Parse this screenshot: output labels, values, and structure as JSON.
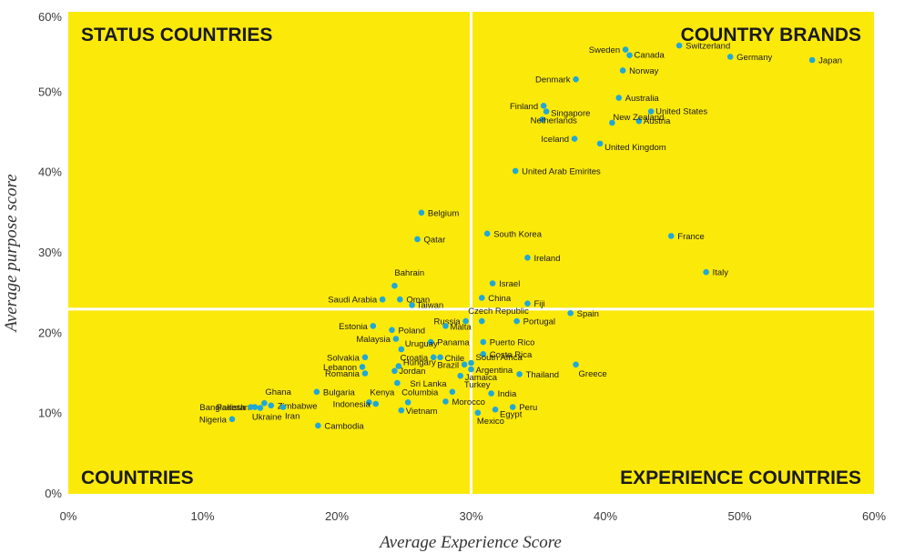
{
  "chart_data": {
    "type": "scatter",
    "xlabel": "Average Experience Score",
    "ylabel": "Average purpose score",
    "xlim": [
      0,
      60
    ],
    "ylim": [
      0,
      60
    ],
    "x_ticks": [
      "0%",
      "10%",
      "20%",
      "30%",
      "40%",
      "50%",
      "60%"
    ],
    "y_ticks": [
      "0%",
      "10%",
      "20%",
      "30%",
      "40%",
      "50%",
      "60%"
    ],
    "divider_x": 30,
    "divider_y": 23,
    "background_color": "#fbe90a",
    "point_color": "#1fa8d8",
    "quadrant_labels": {
      "top_left": "STATUS COUNTRIES",
      "top_right": "COUNTRY BRANDS",
      "bottom_left": "COUNTRIES",
      "bottom_right": "EXPERIENCE COUNTRIES"
    },
    "points": [
      {
        "name": "Switzerland",
        "x": 45.5,
        "y": 55.8
      },
      {
        "name": "Sweden",
        "x": 41.5,
        "y": 55.3
      },
      {
        "name": "Canada",
        "x": 41.8,
        "y": 54.6
      },
      {
        "name": "Germany",
        "x": 49.3,
        "y": 54.4
      },
      {
        "name": "Japan",
        "x": 55.4,
        "y": 54.0
      },
      {
        "name": "Norway",
        "x": 41.3,
        "y": 52.7
      },
      {
        "name": "Denmark",
        "x": 37.8,
        "y": 51.6
      },
      {
        "name": "Australia",
        "x": 41.0,
        "y": 49.3
      },
      {
        "name": "Finland",
        "x": 35.4,
        "y": 48.3
      },
      {
        "name": "Singapore",
        "x": 35.6,
        "y": 47.6
      },
      {
        "name": "United States",
        "x": 43.4,
        "y": 47.6
      },
      {
        "name": "Netherlands",
        "x": 35.3,
        "y": 46.6
      },
      {
        "name": "Austria",
        "x": 42.5,
        "y": 46.4
      },
      {
        "name": "New Zealand",
        "x": 40.5,
        "y": 46.2
      },
      {
        "name": "Iceland",
        "x": 37.7,
        "y": 44.2
      },
      {
        "name": "United Kingdom",
        "x": 39.6,
        "y": 43.6
      },
      {
        "name": "United Arab Emirites",
        "x": 33.3,
        "y": 40.2
      },
      {
        "name": "Belgium",
        "x": 26.3,
        "y": 35.0
      },
      {
        "name": "South Korea",
        "x": 31.2,
        "y": 32.4
      },
      {
        "name": "France",
        "x": 44.9,
        "y": 32.1
      },
      {
        "name": "Qatar",
        "x": 26.0,
        "y": 31.7
      },
      {
        "name": "Ireland",
        "x": 34.2,
        "y": 29.4
      },
      {
        "name": "Italy",
        "x": 47.5,
        "y": 27.6
      },
      {
        "name": "Israel",
        "x": 31.6,
        "y": 26.2
      },
      {
        "name": "Bahrain",
        "x": 24.3,
        "y": 25.9
      },
      {
        "name": "Saudi Arabia",
        "x": 23.4,
        "y": 24.2
      },
      {
        "name": "Oman",
        "x": 24.7,
        "y": 24.2
      },
      {
        "name": "China",
        "x": 30.8,
        "y": 24.4
      },
      {
        "name": "Taiwan",
        "x": 25.6,
        "y": 23.5
      },
      {
        "name": "Fiji",
        "x": 34.2,
        "y": 23.7
      },
      {
        "name": "Spain",
        "x": 37.4,
        "y": 22.5
      },
      {
        "name": "Russia",
        "x": 29.6,
        "y": 21.5
      },
      {
        "name": "Czech Republic",
        "x": 30.8,
        "y": 21.5
      },
      {
        "name": "Portugal",
        "x": 33.4,
        "y": 21.5
      },
      {
        "name": "Estonia",
        "x": 22.7,
        "y": 20.9
      },
      {
        "name": "Poland",
        "x": 24.1,
        "y": 20.4
      },
      {
        "name": "Malta",
        "x": 28.1,
        "y": 20.9
      },
      {
        "name": "Malaysia",
        "x": 24.4,
        "y": 19.3
      },
      {
        "name": "Panama",
        "x": 27.0,
        "y": 18.9
      },
      {
        "name": "Puerto Rico",
        "x": 30.9,
        "y": 18.9
      },
      {
        "name": "Uruguay",
        "x": 24.8,
        "y": 18.0
      },
      {
        "name": "Costa Rica",
        "x": 30.9,
        "y": 17.4
      },
      {
        "name": "Solvakia",
        "x": 22.1,
        "y": 17.0
      },
      {
        "name": "Croatia",
        "x": 27.2,
        "y": 17.0
      },
      {
        "name": "Chile",
        "x": 27.7,
        "y": 17.0
      },
      {
        "name": "South Africa",
        "x": 30.0,
        "y": 16.3
      },
      {
        "name": "Greece",
        "x": 37.8,
        "y": 16.1
      },
      {
        "name": "Lebanon",
        "x": 21.9,
        "y": 15.8
      },
      {
        "name": "Hungary",
        "x": 24.6,
        "y": 15.9
      },
      {
        "name": "Brazil",
        "x": 29.5,
        "y": 16.1
      },
      {
        "name": "Argentina",
        "x": 30.0,
        "y": 15.5
      },
      {
        "name": "Romania",
        "x": 22.1,
        "y": 15.0
      },
      {
        "name": "Jordan",
        "x": 24.3,
        "y": 15.3
      },
      {
        "name": "Jamaica",
        "x": 29.2,
        "y": 14.7
      },
      {
        "name": "Thailand",
        "x": 33.6,
        "y": 14.9
      },
      {
        "name": "Sri Lanka",
        "x": 24.5,
        "y": 13.8
      },
      {
        "name": "Turkey",
        "x": 28.6,
        "y": 12.7
      },
      {
        "name": "Bulgaria",
        "x": 18.5,
        "y": 12.7
      },
      {
        "name": "India",
        "x": 31.5,
        "y": 12.5
      },
      {
        "name": "Ghana",
        "x": 14.6,
        "y": 11.3
      },
      {
        "name": "Zimbabwe",
        "x": 15.1,
        "y": 11.0
      },
      {
        "name": "Kenya",
        "x": 22.4,
        "y": 11.4
      },
      {
        "name": "Columbia",
        "x": 25.3,
        "y": 11.4
      },
      {
        "name": "Morocco",
        "x": 28.1,
        "y": 11.5
      },
      {
        "name": "Pakistan",
        "x": 13.9,
        "y": 10.8
      },
      {
        "name": "Indonesia",
        "x": 22.9,
        "y": 11.2
      },
      {
        "name": "Bangladesh",
        "x": 13.6,
        "y": 10.8
      },
      {
        "name": "Peru",
        "x": 33.1,
        "y": 10.8
      },
      {
        "name": "Egypt",
        "x": 31.8,
        "y": 10.5
      },
      {
        "name": "Vietnam",
        "x": 24.8,
        "y": 10.4
      },
      {
        "name": "Iran",
        "x": 16.0,
        "y": 10.8
      },
      {
        "name": "Ukraine",
        "x": 14.3,
        "y": 10.7
      },
      {
        "name": "Mexico",
        "x": 30.5,
        "y": 10.1
      },
      {
        "name": "Nigeria",
        "x": 12.2,
        "y": 9.3
      },
      {
        "name": "Cambodia",
        "x": 18.6,
        "y": 8.5
      }
    ]
  }
}
